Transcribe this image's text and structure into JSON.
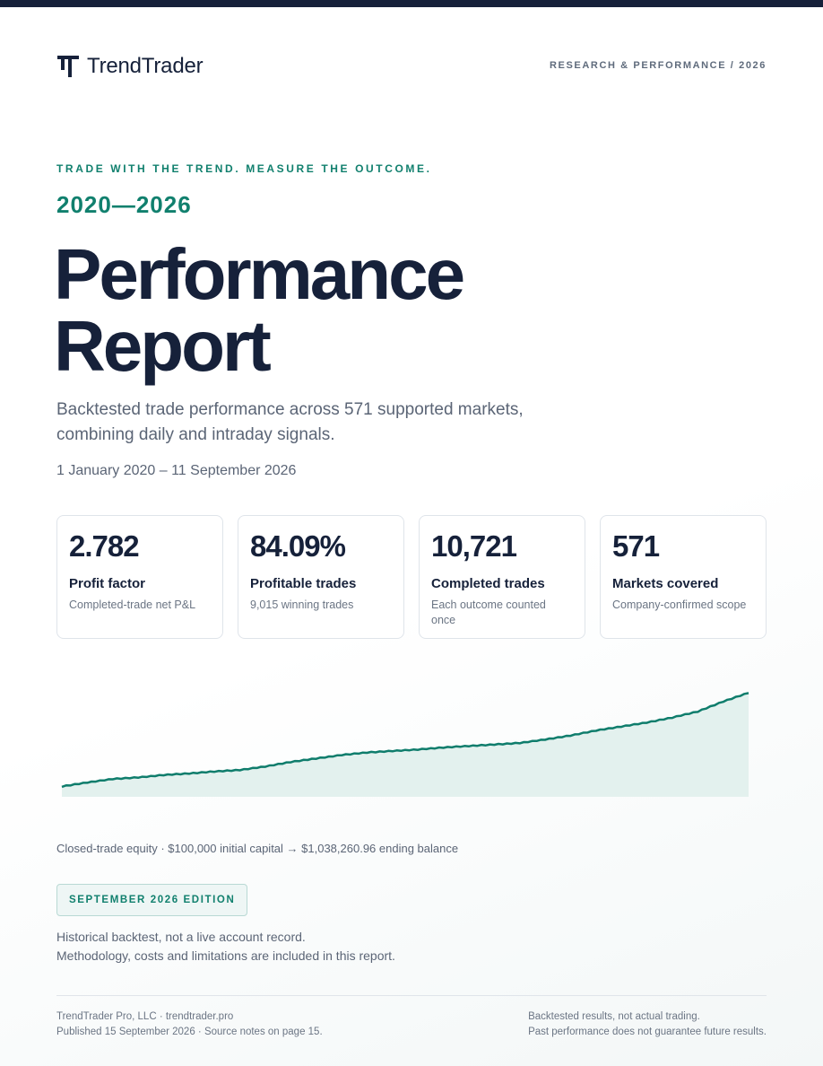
{
  "header": {
    "brand": "TrendTrader",
    "meta": "RESEARCH & PERFORMANCE / 2026"
  },
  "hero": {
    "tagline": "TRADE WITH THE TREND. MEASURE THE OUTCOME.",
    "years": "2020—2026",
    "title_line1": "Performance",
    "title_line2": "Report",
    "subtitle_line1": "Backtested trade performance across 571 supported markets,",
    "subtitle_line2": "combining daily and intraday signals.",
    "date_range": "1 January 2020 – 11 September 2026"
  },
  "stats": [
    {
      "value": "2.782",
      "label": "Profit factor",
      "desc": "Completed-trade net P&L"
    },
    {
      "value": "84.09%",
      "label": "Profitable trades",
      "desc": "9,015 winning trades"
    },
    {
      "value": "10,721",
      "label": "Completed trades",
      "desc": "Each outcome counted once"
    },
    {
      "value": "571",
      "label": "Markets covered",
      "desc": "Company-confirmed scope"
    }
  ],
  "chart_data": {
    "type": "area",
    "title": "",
    "xlabel": "",
    "ylabel": "",
    "x": [
      "2020-01",
      "2020-04",
      "2020-07",
      "2020-10",
      "2021-01",
      "2021-04",
      "2021-07",
      "2021-10",
      "2022-01",
      "2022-04",
      "2022-07",
      "2022-10",
      "2023-01",
      "2023-04",
      "2023-07",
      "2023-10",
      "2024-01",
      "2024-04",
      "2024-07",
      "2024-10",
      "2025-01",
      "2025-04",
      "2025-07",
      "2025-10",
      "2026-01",
      "2026-04",
      "2026-07",
      "2026-09"
    ],
    "values": [
      100000,
      140000,
      175000,
      190000,
      215000,
      230000,
      250000,
      265000,
      300000,
      345000,
      380000,
      415000,
      440000,
      455000,
      470000,
      490000,
      505000,
      520000,
      535000,
      570000,
      610000,
      660000,
      700000,
      740000,
      790000,
      850000,
      950000,
      1038260.96
    ],
    "ylim": [
      0,
      1060000
    ],
    "grid": false,
    "line_color": "#0f7d6c",
    "fill_color": "#e3f1ee"
  },
  "chart_caption": "Closed-trade equity · $100,000 initial capital → $1,038,260.96 ending balance",
  "edition": "SEPTEMBER 2026 EDITION",
  "disclaimer": {
    "line1": "Historical backtest, not a live account record.",
    "line2": "Methodology, costs and limitations are included in this report."
  },
  "footer": {
    "left_line1": "TrendTrader Pro, LLC · trendtrader.pro",
    "left_line2": "Published 15 September 2026 · Source notes on page 15.",
    "right_line1": "Backtested results, not actual trading.",
    "right_line2": "Past performance does not guarantee future results."
  }
}
